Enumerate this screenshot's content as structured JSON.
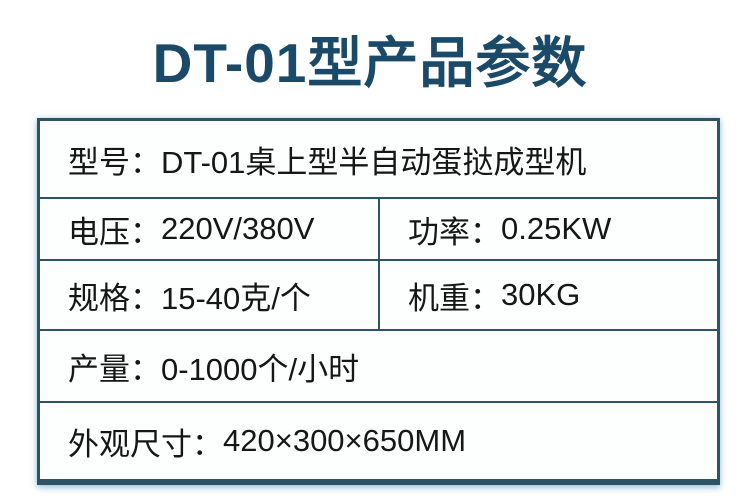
{
  "page": {
    "title": "DT-01型产品参数"
  },
  "colors": {
    "title_text": "#1b4a68",
    "table_border": "#2e5463",
    "cell_background": "#fdfefe",
    "body_text": "#161616",
    "outer_glow": "#9ec6da"
  },
  "table": {
    "rows": [
      {
        "cells": [
          {
            "label": "型号：",
            "value": "DT-01桌上型半自动蛋挞成型机"
          }
        ]
      },
      {
        "cells": [
          {
            "label": "电压：",
            "value": "220V/380V"
          },
          {
            "label": "功率：",
            "value": "0.25KW"
          }
        ]
      },
      {
        "cells": [
          {
            "label": "规格：",
            "value": "15-40克/个"
          },
          {
            "label": "机重：",
            "value": "30KG"
          }
        ]
      },
      {
        "cells": [
          {
            "label": "产量：",
            "value": "0-1000个/小时"
          }
        ]
      },
      {
        "cells": [
          {
            "label": "外观尺寸：",
            "value": "420×300×650MM"
          }
        ]
      }
    ]
  }
}
